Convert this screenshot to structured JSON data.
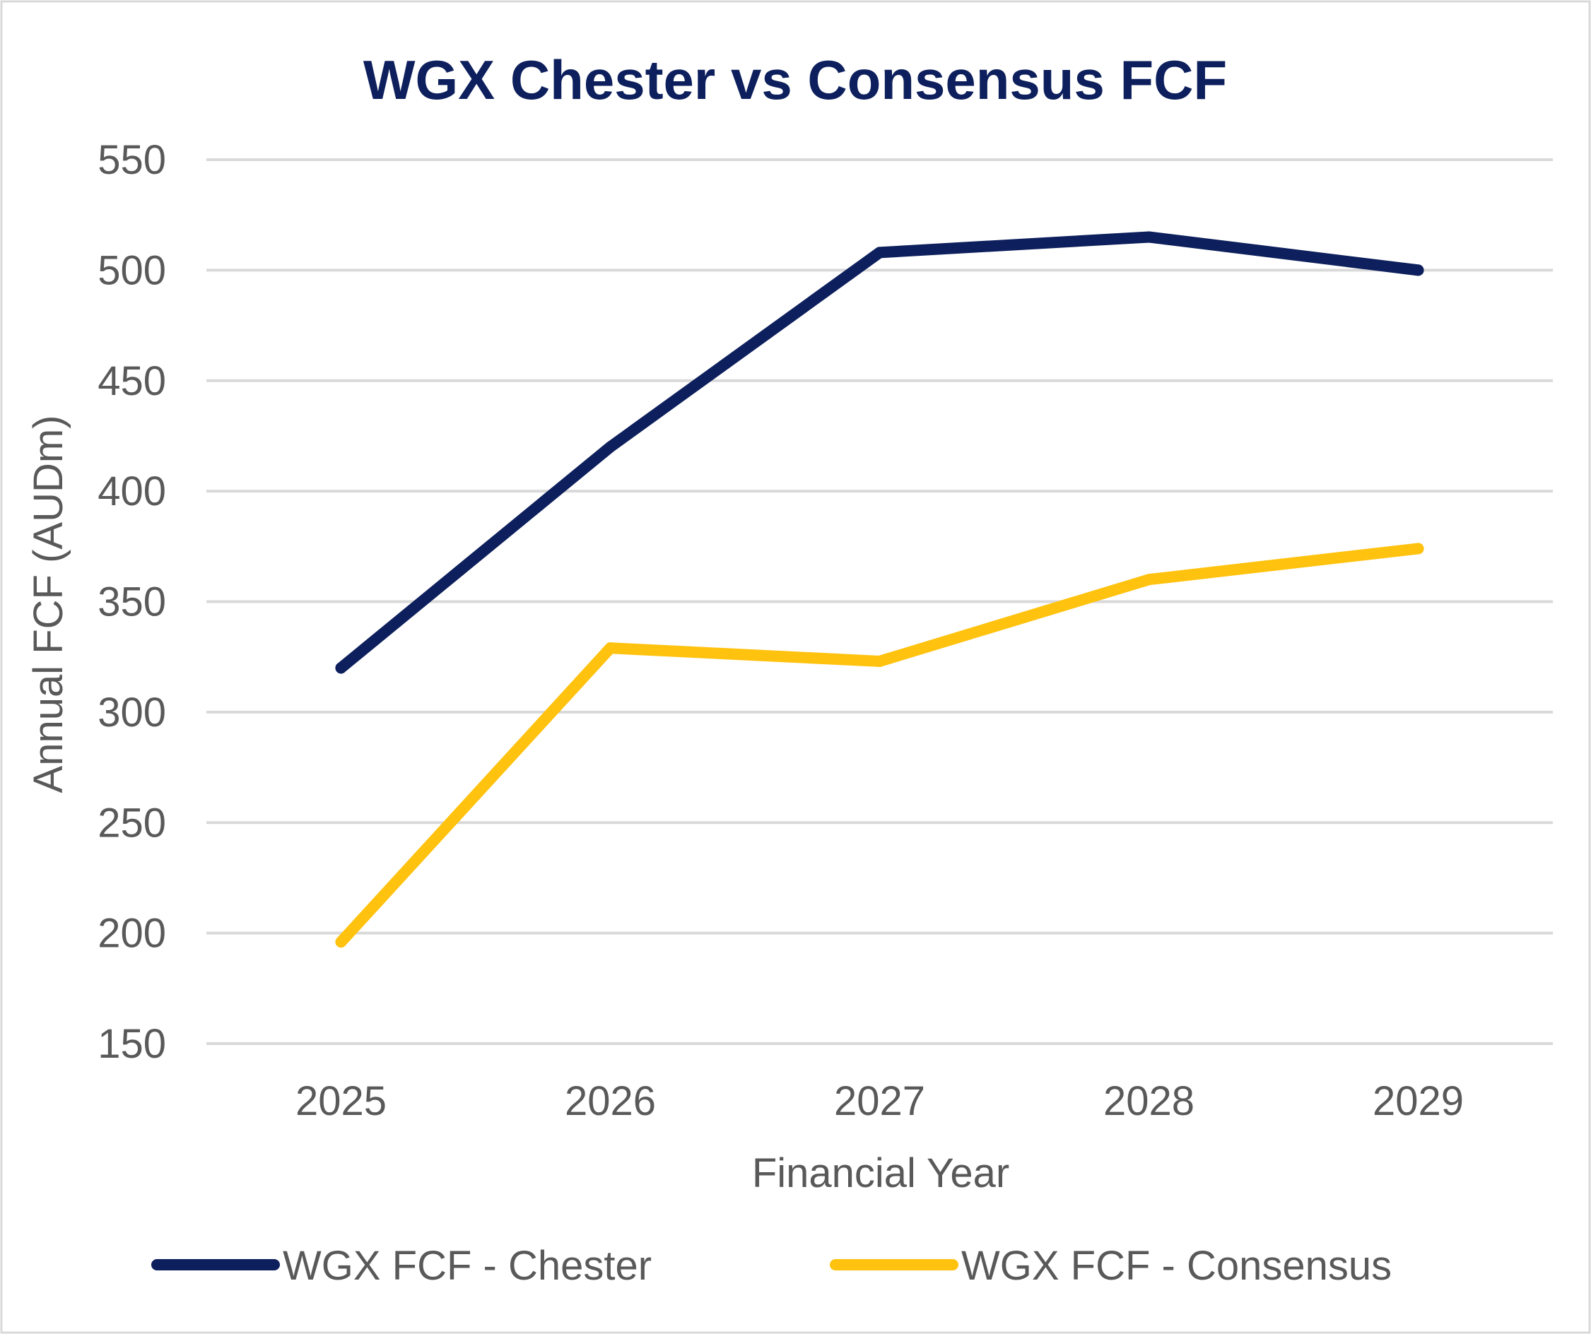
{
  "chart_data": {
    "type": "line",
    "title": "WGX Chester vs Consensus FCF",
    "xlabel": "Financial Year",
    "ylabel": "Annual FCF (AUDm)",
    "categories": [
      "2025",
      "2026",
      "2027",
      "2028",
      "2029"
    ],
    "ylim": [
      150,
      550
    ],
    "yticks": [
      150,
      200,
      250,
      300,
      350,
      400,
      450,
      500,
      550
    ],
    "ytick_labels": [
      "150",
      "200",
      "250",
      "300",
      "350",
      "400",
      "450",
      "500",
      "550"
    ],
    "grid": "horizontal",
    "legend_position": "bottom",
    "series": [
      {
        "name": "WGX FCF - Chester",
        "color": "#0D1F5C",
        "values": [
          320,
          420,
          508,
          515,
          500
        ]
      },
      {
        "name": "WGX FCF - Consensus",
        "color": "#FFC20E",
        "values": [
          196,
          329,
          323,
          360,
          374
        ]
      }
    ],
    "colors": {
      "title": "#0D1F5C",
      "text": "#595959",
      "grid": "#D9D9D9",
      "frame": "#D9D9D9"
    }
  }
}
